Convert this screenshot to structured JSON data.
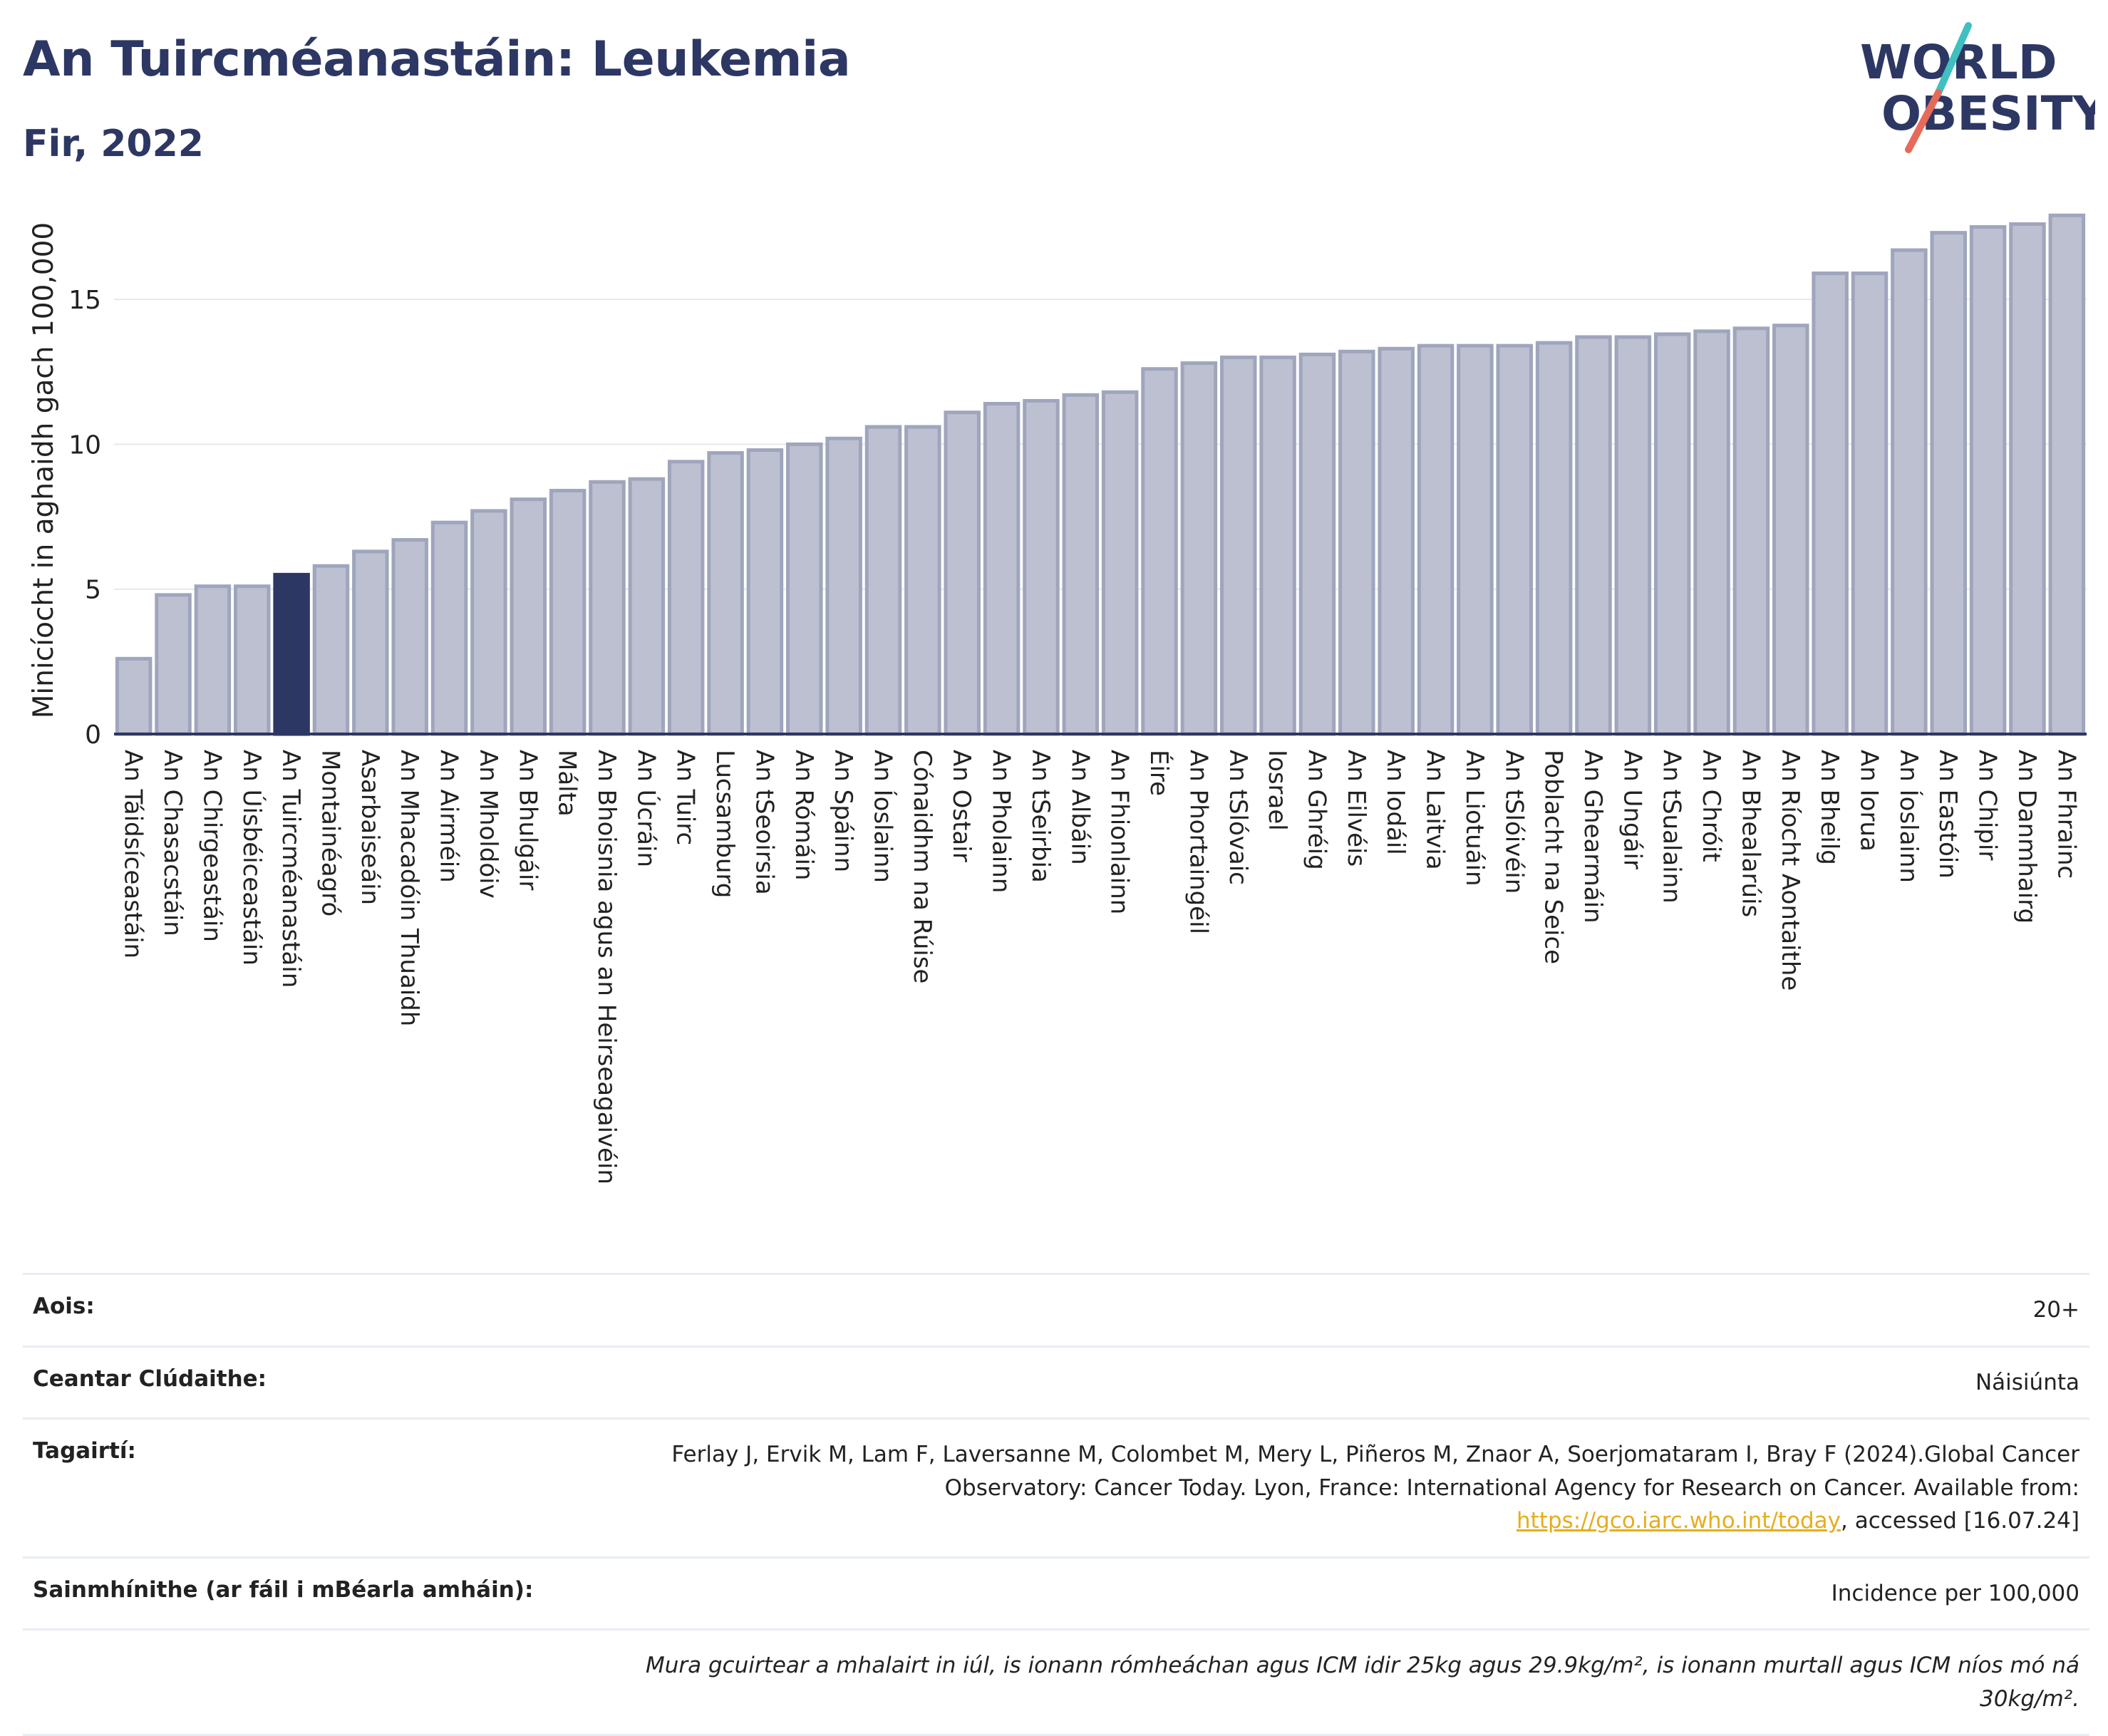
{
  "header": {
    "title": "An Tuircméanastáin: Leukemia",
    "subtitle": "Fir, 2022"
  },
  "logo": {
    "line1": "WORLD",
    "line2": "OBESITY",
    "colors": {
      "text": "#2d3764",
      "slash_teal": "#3fbfbf",
      "slash_coral": "#e66a5a"
    }
  },
  "chart_data": {
    "type": "bar",
    "title": "An Tuircméanastáin: Leukemia",
    "subtitle": "Fir, 2022",
    "ylabel": "Minicíocht in aghaidh gach 100,000",
    "xlabel": "",
    "ylim": [
      0,
      18.2
    ],
    "yticks": [
      0,
      5,
      10,
      15
    ],
    "grid": true,
    "highlight": "An Tuircméanastáin",
    "colors": {
      "bar": "#bcc0d0",
      "bar_edge": "#9fa5bc",
      "highlight": "#2d3764",
      "grid": "#e6e8ee",
      "axis": "#2d3764"
    },
    "categories": [
      "An Táidsíceastáin",
      "An Chasacstáin",
      "An Chirgeastáin",
      "An Úisbéiceastáin",
      "An Tuircméanastáin",
      "Montainéagró",
      "Asarbaiseáin",
      "An Mhacadóin Thuaidh",
      "An Airméin",
      "An Mholdóiv",
      "An Bhulgáir",
      "Málta",
      "An Bhoisnia agus an Heirseagaivéin",
      "An Úcráin",
      "An Tuirc",
      "Lucsamburg",
      "An tSeoirsia",
      "An Rómáin",
      "An Spáinn",
      "An Íoslainn",
      "Cónaidhm na Rúise",
      "An Ostair",
      "An Pholainn",
      "An tSeirbia",
      "An Albáin",
      "An Fhionlainn",
      "Éire",
      "An Phortaingéil",
      "An tSlóvaic",
      "Iosrael",
      "An Ghréig",
      "An Eilvéis",
      "An Iodáil",
      "An Laitvia",
      "An Liotuáin",
      "An tSlóivéin",
      "Poblacht na Seice",
      "An Ghearmáin",
      "An Ungáir",
      "An tSualainn",
      "An Chróit",
      "An Bhealarúis",
      "An Ríocht Aontaithe",
      "An Bheilg",
      "An Iorua",
      "An Íoslainn",
      "An Eastóin",
      "An Chipir",
      "An Danmhairg",
      "An Fhrainc"
    ],
    "values": [
      2.6,
      4.8,
      5.1,
      5.1,
      5.5,
      5.8,
      6.3,
      6.7,
      7.3,
      7.7,
      8.1,
      8.4,
      8.7,
      8.8,
      9.4,
      9.7,
      9.8,
      10.0,
      10.2,
      10.6,
      10.6,
      11.1,
      11.4,
      11.5,
      11.7,
      11.8,
      12.6,
      12.8,
      13.0,
      13.0,
      13.1,
      13.2,
      13.3,
      13.4,
      13.4,
      13.4,
      13.5,
      13.7,
      13.7,
      13.8,
      13.9,
      14.0,
      14.1,
      15.9,
      15.9,
      16.7,
      17.3,
      17.5,
      17.6,
      17.9
    ]
  },
  "info": {
    "age_label": "Aois:",
    "age_value": "20+",
    "coverage_label": "Ceantar Clúdaithe:",
    "coverage_value": "Náisiúnta",
    "references_label": "Tagairtí:",
    "references_text": "Ferlay J, Ervik M, Lam F, Laversanne M, Colombet M, Mery L, Piñeros M, Znaor A, Soerjomataram I, Bray F (2024).Global Cancer Observatory: Cancer Today. Lyon, France: International Agency for Research on Cancer. Available from:",
    "references_link": "https://gco.iarc.who.int/today",
    "references_suffix": ", accessed [16.07.24]",
    "definitions_label": "Sainmhínithe (ar fáil i mBéarla amháin):",
    "definitions_value": "Incidence per 100,000",
    "footnote": "Mura gcuirtear a mhalairt in iúl, is ionann rómheáchan agus ICM idir 25kg agus 29.9kg/m², is ionann murtall agus ICM níos mó ná 30kg/m²."
  }
}
